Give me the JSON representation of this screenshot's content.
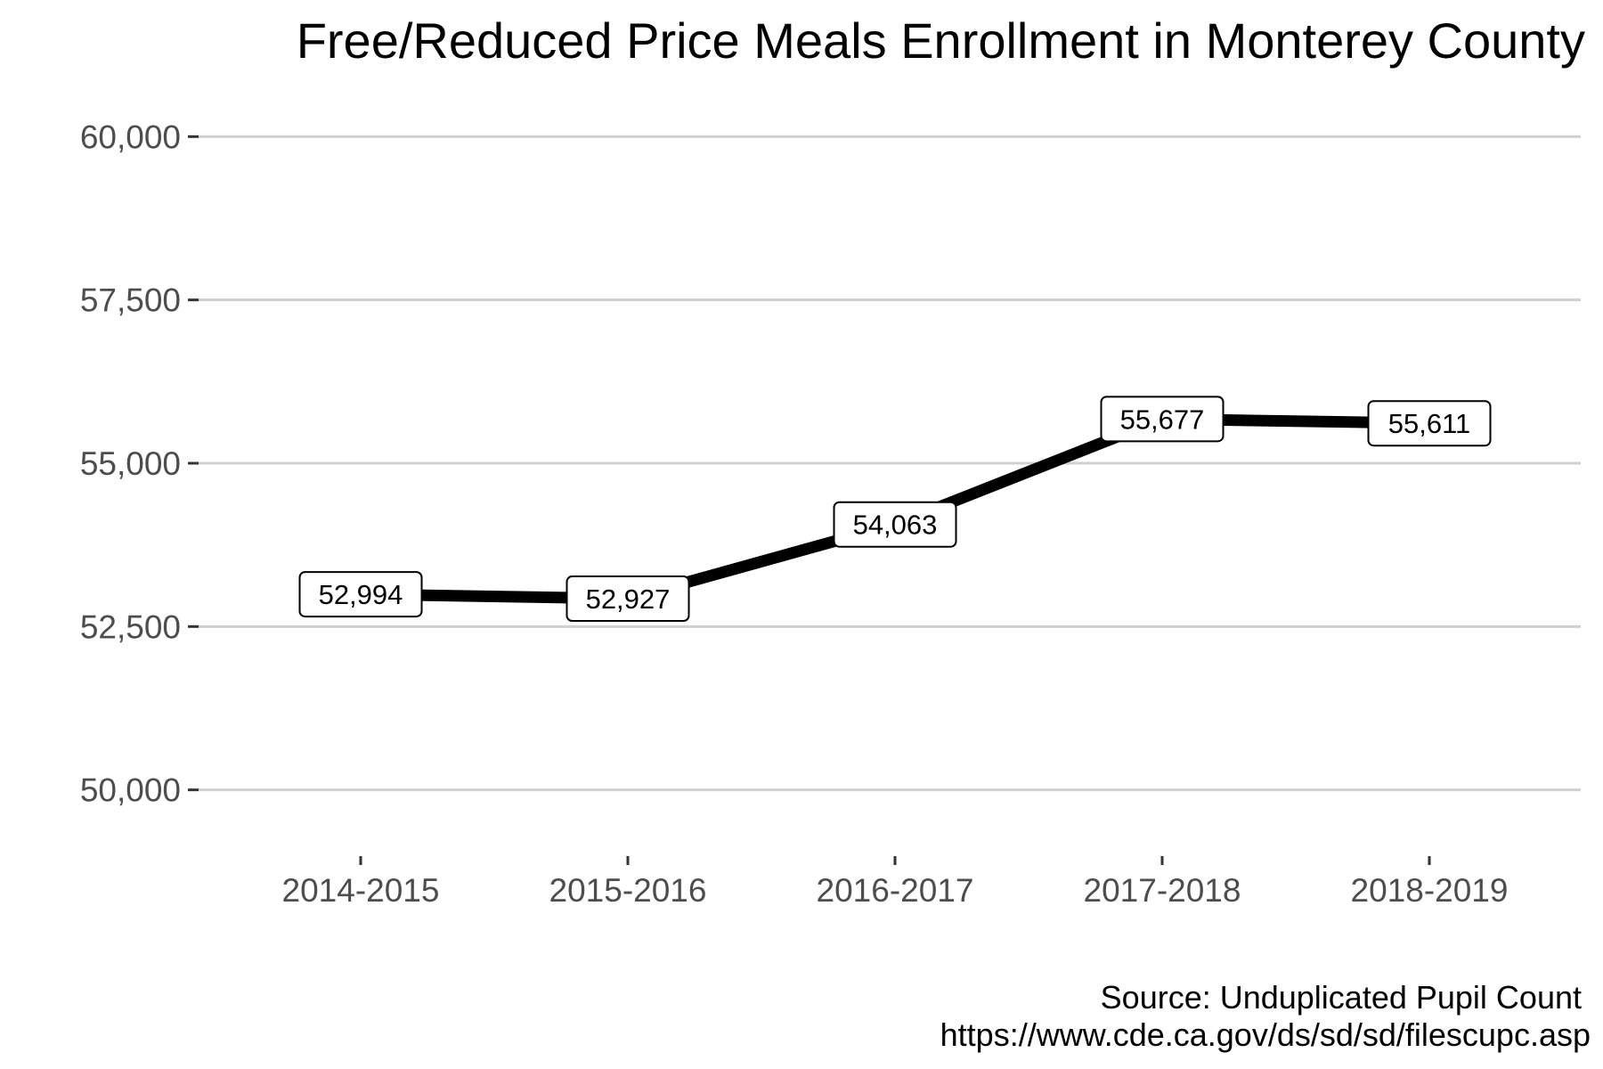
{
  "chart_data": {
    "type": "line",
    "title": "Free/Reduced Price Meals Enrollment in Monterey County",
    "xlabel": "",
    "ylabel": "",
    "categories": [
      "2014-2015",
      "2015-2016",
      "2016-2017",
      "2017-2018",
      "2018-2019"
    ],
    "series": [
      {
        "values": [
          52994,
          52927,
          54063,
          55677,
          55611
        ],
        "data_labels": [
          "52,994",
          "52,927",
          "54,063",
          "55,677",
          "55,611"
        ],
        "color": "#000000"
      }
    ],
    "ylim": [
      49000,
      60700
    ],
    "yticks": [
      50000,
      52500,
      55000,
      57500,
      60000
    ],
    "ytick_labels": [
      "50,000",
      "52,500",
      "55,000",
      "57,500",
      "60,000"
    ],
    "grid": "horizontal major lines",
    "legend": "none",
    "caption": [
      "Source: Unduplicated Pupil Count",
      "https://www.cde.ca.gov/ds/sd/sd/filescupc.asp"
    ]
  },
  "colors": {
    "line": "#000000",
    "grid": "#d0d0d0",
    "tick_text": "#4d4d4d",
    "label_box_fill": "#ffffff",
    "label_box_stroke": "#000000"
  }
}
